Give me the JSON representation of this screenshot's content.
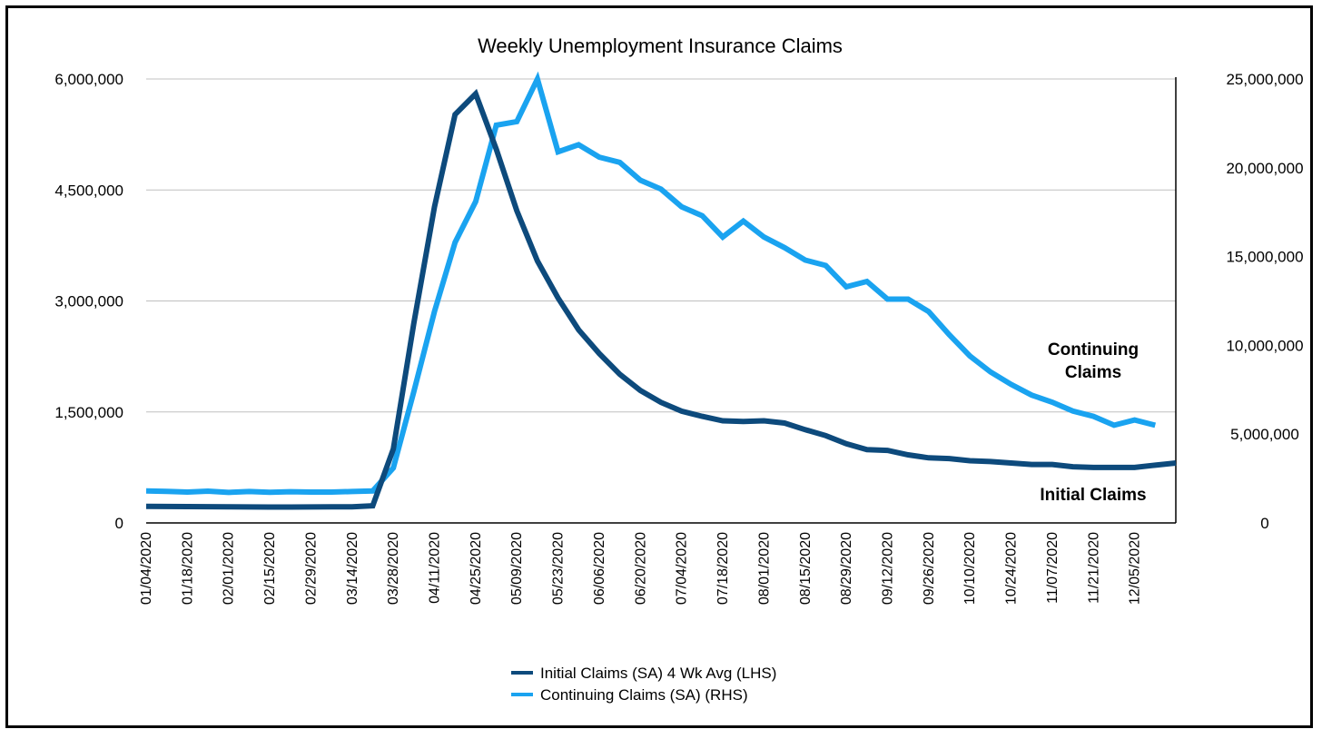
{
  "chart_data": {
    "type": "line",
    "title": "Weekly Unemployment Insurance Claims",
    "x_tick_labels": [
      "01/04/2020",
      "01/18/2020",
      "02/01/2020",
      "02/15/2020",
      "02/29/2020",
      "03/14/2020",
      "03/28/2020",
      "04/11/2020",
      "04/25/2020",
      "05/09/2020",
      "05/23/2020",
      "06/06/2020",
      "06/20/2020",
      "07/04/2020",
      "07/18/2020",
      "08/01/2020",
      "08/15/2020",
      "08/29/2020",
      "09/12/2020",
      "09/26/2020",
      "10/10/2020",
      "10/24/2020",
      "11/07/2020",
      "11/21/2020",
      "12/05/2020"
    ],
    "left_axis": {
      "ylim": [
        0,
        6000000
      ],
      "tick_labels": [
        "0",
        "1,500,000",
        "3,000,000",
        "4,500,000",
        "6,000,000"
      ]
    },
    "right_axis": {
      "ylim": [
        0,
        25000000
      ],
      "tick_labels": [
        "0",
        "5,000,000",
        "10,000,000",
        "15,000,000",
        "20,000,000",
        "25,000,000"
      ]
    },
    "grid": true,
    "legend_position": "bottom",
    "series": [
      {
        "name": "Initial Claims (SA) 4 Wk Avg (LHS)",
        "axis": "left",
        "color": "#0d4a7c",
        "x_start_date": "01/04/2020",
        "values": [
          225000,
          222000,
          221000,
          220000,
          218000,
          216000,
          215000,
          215000,
          216000,
          217000,
          217000,
          232000,
          1000000,
          2700000,
          4270000,
          5520000,
          5800000,
          5050000,
          4220000,
          3540000,
          3040000,
          2610000,
          2290000,
          2010000,
          1790000,
          1630000,
          1510000,
          1440000,
          1380000,
          1370000,
          1380000,
          1350000,
          1260000,
          1180000,
          1070000,
          990000,
          980000,
          920000,
          880000,
          870000,
          840000,
          830000,
          810000,
          790000,
          790000,
          760000,
          750000,
          750000,
          750000,
          780000,
          810000
        ]
      },
      {
        "name": "Continuing Claims (SA) (RHS)",
        "axis": "right",
        "color": "#1aa3f0",
        "x_start_date": "01/04/2020",
        "values": [
          1800000,
          1780000,
          1740000,
          1790000,
          1720000,
          1770000,
          1730000,
          1760000,
          1740000,
          1740000,
          1770000,
          1800000,
          3100000,
          7400000,
          11900000,
          15800000,
          18100000,
          22400000,
          22600000,
          25000000,
          20900000,
          21300000,
          20600000,
          20300000,
          19300000,
          18800000,
          17800000,
          17300000,
          16100000,
          17000000,
          16100000,
          15500000,
          14800000,
          14500000,
          13300000,
          13600000,
          12600000,
          12600000,
          11900000,
          10600000,
          9400000,
          8500000,
          7800000,
          7200000,
          6800000,
          6300000,
          6000000,
          5500000,
          5800000,
          5500000
        ]
      }
    ],
    "annotations": [
      {
        "text_line1": "Continuing",
        "text_line2": "Claims"
      },
      {
        "text": "Initial Claims"
      }
    ]
  }
}
